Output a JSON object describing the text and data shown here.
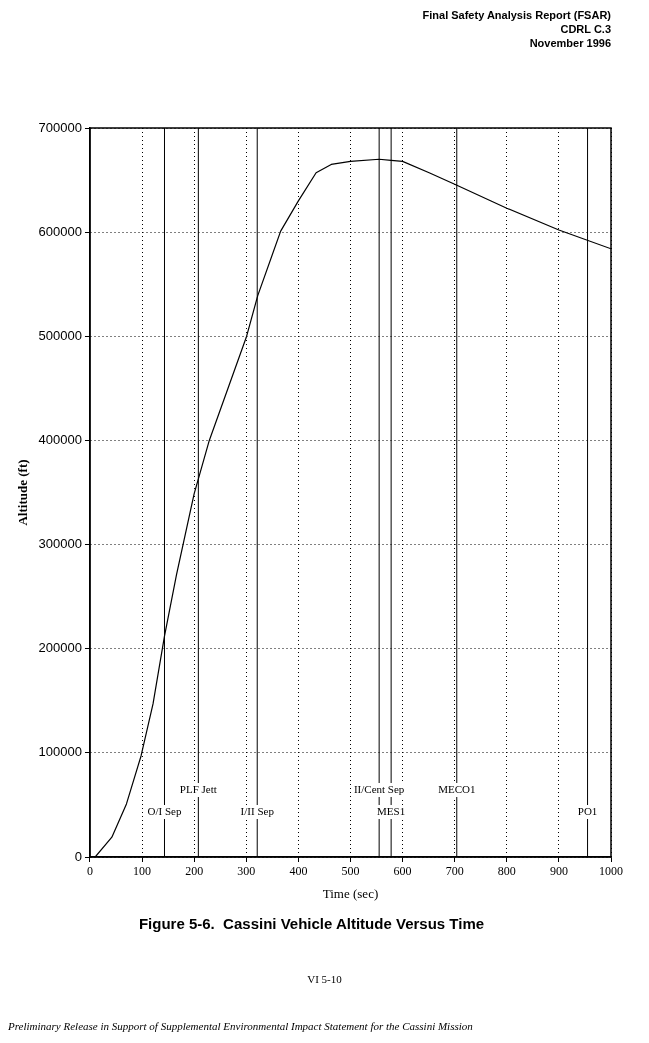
{
  "chart_data": {
    "type": "line",
    "title": "Figure 5-6.  Cassini Vehicle Altitude Versus Time",
    "xlabel": "Time (sec)",
    "ylabel": "Altitude (ft)",
    "x": [
      10,
      42,
      70,
      98,
      121,
      143,
      166,
      200,
      229,
      267,
      300,
      322,
      366,
      400,
      434,
      463,
      500,
      555,
      578,
      600,
      651,
      700,
      800,
      900,
      1000
    ],
    "series": [
      {
        "color": "#000000",
        "values": [
          0,
          19000,
          51000,
          97000,
          147000,
          212000,
          271000,
          349000,
          400000,
          453000,
          499000,
          539000,
          601000,
          630000,
          657000,
          665000,
          668000,
          670000,
          669000,
          668000,
          657000,
          646000,
          623000,
          602000,
          584000
        ]
      }
    ],
    "xlim": [
      0,
      1000
    ],
    "xticks": [
      0,
      100,
      200,
      300,
      400,
      500,
      600,
      700,
      800,
      900,
      1000
    ],
    "ylim": [
      0,
      700000
    ],
    "yticks": [
      0,
      100000,
      200000,
      300000,
      400000,
      500000,
      600000,
      700000
    ],
    "grid": true,
    "marker": "none",
    "line_style": "solid",
    "ref_lines": [
      {
        "axis": "x",
        "value": 143,
        "label": "O/I Sep"
      },
      {
        "axis": "x",
        "value": 208,
        "label": "PLF Jett"
      },
      {
        "axis": "x",
        "value": 321,
        "label": "I/II Sep"
      },
      {
        "axis": "x",
        "value": 555,
        "label": "II/Cent Sep"
      },
      {
        "axis": "x",
        "value": 578,
        "label": "MES1"
      },
      {
        "axis": "x",
        "value": 704,
        "label": "MECO1"
      },
      {
        "axis": "x",
        "value": 955,
        "label": "PO1"
      }
    ],
    "annotations": [
      "Final Safety Analysis Report (FSAR)",
      "CDRL C.3",
      "November 1996",
      "VI 5-10",
      "Preliminary Release in Support of Supplemental Environmental Impact Statement for the Cassini Mission"
    ]
  }
}
